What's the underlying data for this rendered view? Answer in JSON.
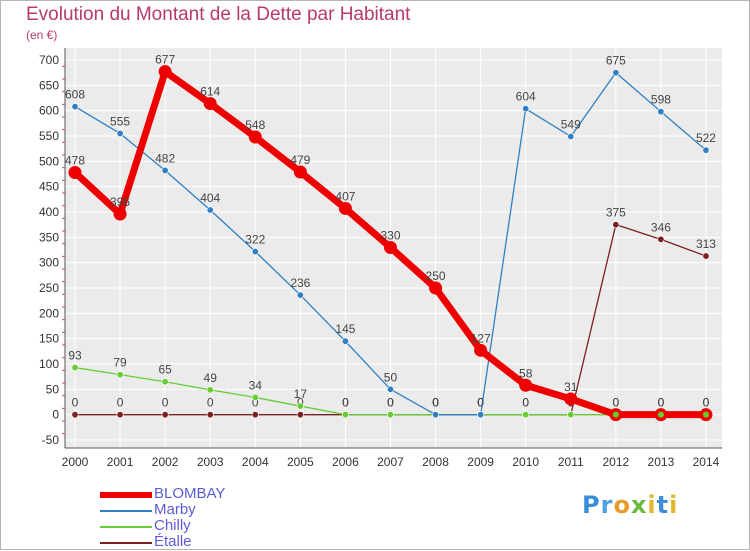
{
  "header": {
    "title": "Evolution du Montant de la Dette par Habitant",
    "subtitle": "(en €)"
  },
  "colors": {
    "title": "#b8396b",
    "plot_background": "#ebebeb",
    "grid": "#ffffff",
    "legend_text": "#5b5bd6"
  },
  "logo": {
    "text": "Proxiti"
  },
  "chart_data": {
    "type": "line",
    "title": "Evolution du Montant de la Dette par Habitant",
    "subtitle": "(en €)",
    "xlabel": "",
    "ylabel": "",
    "x": [
      "2000",
      "2001",
      "2002",
      "2003",
      "2004",
      "2005",
      "2006",
      "2007",
      "2008",
      "2009",
      "2010",
      "2011",
      "2012",
      "2013",
      "2014"
    ],
    "ylim": [
      -50,
      700
    ],
    "yticks": [
      -50,
      0,
      50,
      100,
      150,
      200,
      250,
      300,
      350,
      400,
      450,
      500,
      550,
      600,
      650,
      700
    ],
    "grid": true,
    "legend_position": "bottom-left",
    "series": [
      {
        "name": "BLOMBAY",
        "color": "#ee0000",
        "width": "thick",
        "values": [
          478,
          396,
          677,
          614,
          548,
          479,
          407,
          330,
          250,
          127,
          58,
          31,
          0,
          0,
          0
        ],
        "labels": [
          "478",
          "396",
          "677",
          "614",
          "548",
          "479",
          "407",
          "330",
          "250",
          "127",
          "58",
          "31",
          "0",
          "0",
          "0"
        ]
      },
      {
        "name": "Marby",
        "color": "#2f7fc4",
        "width": "thin",
        "values": [
          608,
          555,
          482,
          404,
          322,
          236,
          145,
          50,
          0,
          0,
          604,
          549,
          675,
          598,
          522
        ],
        "labels": [
          "608",
          "555",
          "482",
          "404",
          "322",
          "236",
          "145",
          "50",
          "0",
          "0",
          "604",
          "549",
          "675",
          "598",
          "522"
        ]
      },
      {
        "name": "Chilly",
        "color": "#66cc33",
        "width": "thin",
        "values": [
          93,
          79,
          65,
          49,
          34,
          17,
          0,
          0,
          0,
          0,
          0,
          0,
          0,
          0,
          0
        ],
        "labels": [
          "93",
          "79",
          "65",
          "49",
          "34",
          "17",
          "0",
          "0",
          "0",
          "0",
          "0",
          "0",
          "0",
          "0",
          "0"
        ]
      },
      {
        "name": "Étalle",
        "color": "#7a2020",
        "width": "thin",
        "values": [
          0,
          0,
          0,
          0,
          0,
          0,
          0,
          0,
          0,
          0,
          0,
          0,
          375,
          346,
          313
        ],
        "labels": [
          "0",
          "0",
          "0",
          "0",
          "0",
          "0",
          "0",
          "0",
          "0",
          "0",
          "0",
          "0",
          "375",
          "346",
          "313"
        ]
      }
    ]
  }
}
